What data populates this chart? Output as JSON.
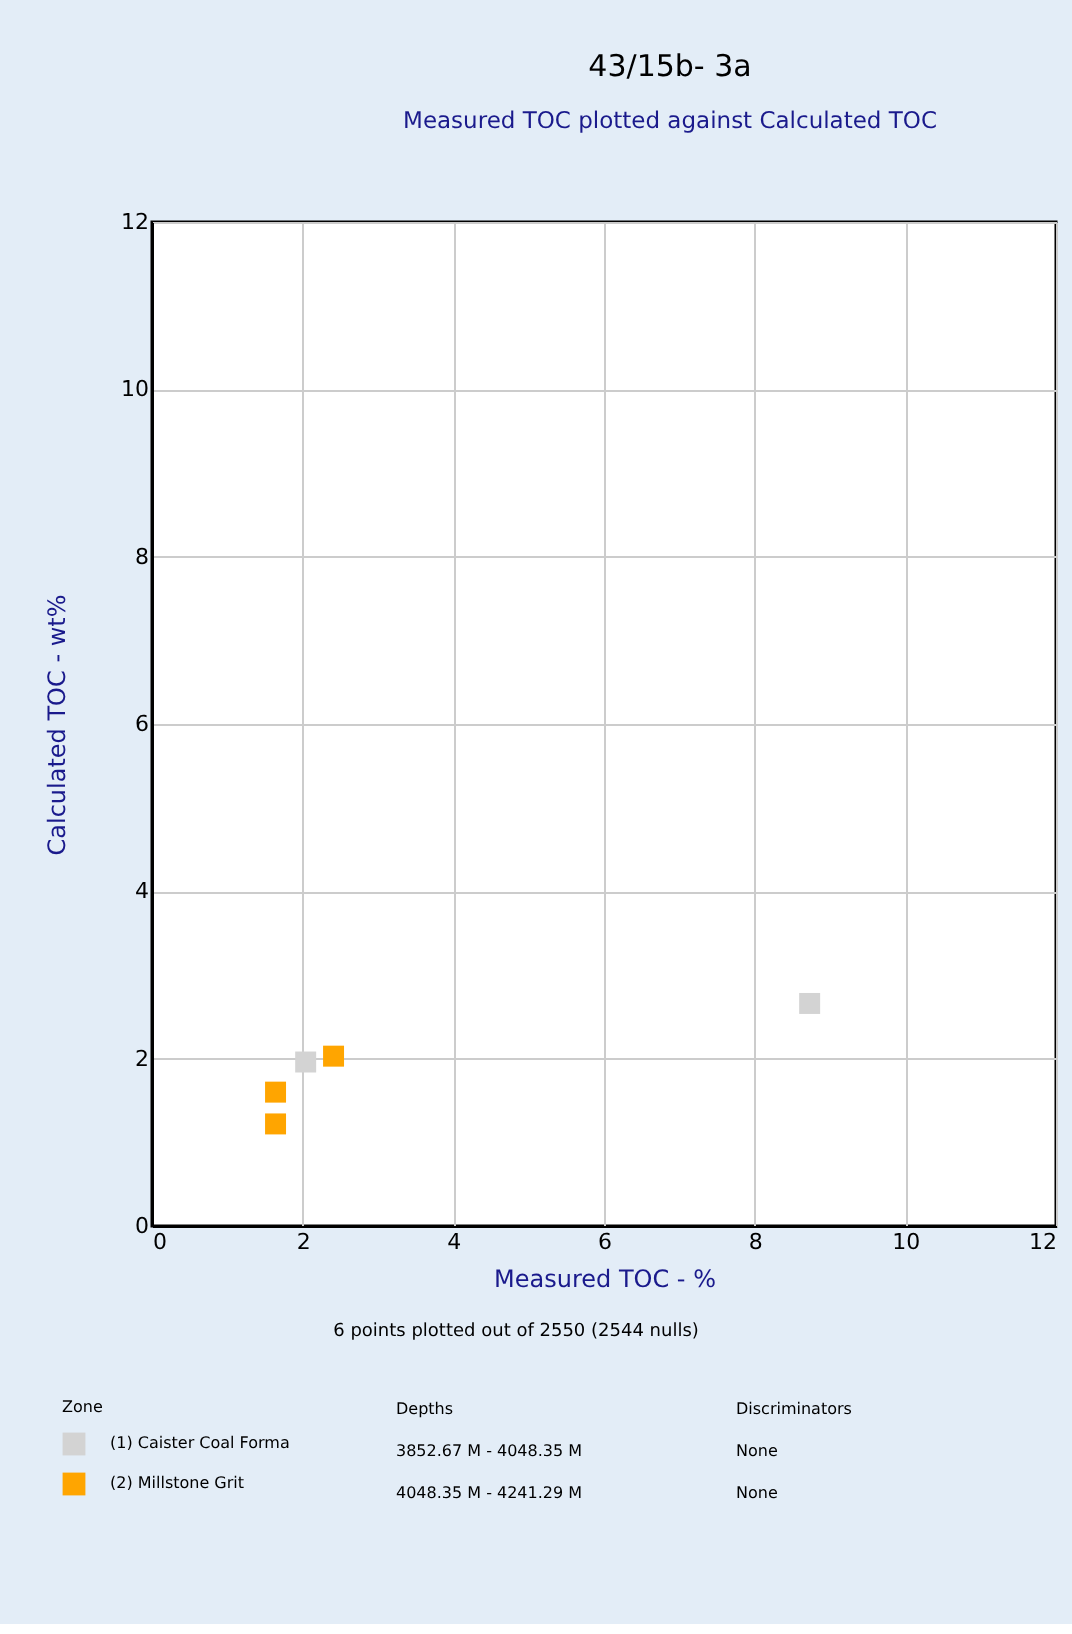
{
  "chart_data": {
    "type": "scatter",
    "title": "43/15b- 3a",
    "subtitle": "Measured TOC plotted against Calculated TOC",
    "xlabel": "Measured TOC - %",
    "ylabel": "Calculated TOC - wt%",
    "legend_title": "Zone",
    "series": [
      {
        "name": "(1) Caister Coal Forma",
        "color": "#d3d3d3",
        "x": [
          2.04,
          8.73
        ],
        "values": [
          1.96,
          2.66
        ]
      },
      {
        "name": "(2) Millstone Grit",
        "color": "#ffa500",
        "x": [
          2.41,
          1.64,
          1.64
        ],
        "values": [
          2.03,
          1.6,
          1.22
        ]
      }
    ],
    "xlim": [
      0,
      12
    ],
    "ylim": [
      0,
      12
    ],
    "xticks": [
      0,
      2,
      4,
      6,
      8,
      10,
      12
    ],
    "yticks": [
      0,
      2,
      4,
      6,
      8,
      10,
      12
    ],
    "grid": true,
    "marker": "square",
    "legend": "bottom",
    "annotations": [
      "6 points plotted out of 2550 (2544 nulls)",
      "Depths",
      "Discriminators",
      "3852.67 M - 4048.35 M",
      "None",
      "4048.35 M - 4241.29 M",
      "None"
    ]
  }
}
